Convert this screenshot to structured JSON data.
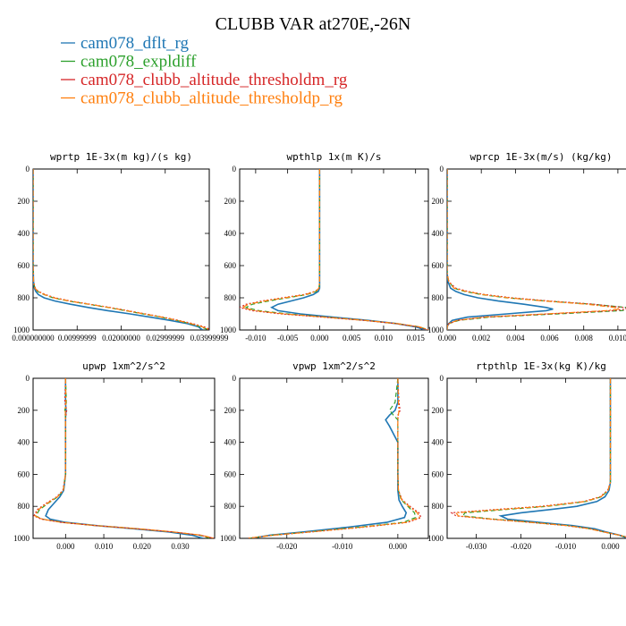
{
  "title": "CLUBB VAR at270E,-26N",
  "legend": [
    {
      "label": "cam078_dflt_rg",
      "color": "#1f77b4",
      "dash": "solid"
    },
    {
      "label": "cam078_expldiff",
      "color": "#2ca02c",
      "dash": "dash"
    },
    {
      "label": "cam078_clubb_altitude_thresholdm_rg",
      "color": "#d62728",
      "dash": "dot"
    },
    {
      "label": "cam078_clubb_altitude_thresholdp_rg",
      "color": "#ff7f0e",
      "dash": "dashdot"
    }
  ],
  "chart_data": [
    {
      "type": "line",
      "title": "wprtp  1E-3x(m kg)/(s kg)",
      "xlim": [
        0,
        0.04
      ],
      "ylim": [
        1000,
        0
      ],
      "xticks": [
        0,
        0.01,
        0.02,
        0.03,
        0.04
      ],
      "xticklabels": [
        "0.000000000",
        "0.00999999",
        "0.02000000",
        "0.02999999",
        "0.03999999"
      ],
      "yticks": [
        0,
        200,
        400,
        600,
        800,
        1000
      ],
      "yticklabels": [
        "0",
        "200",
        "400",
        "600",
        "800",
        "1000"
      ],
      "y": [
        0,
        600,
        700,
        740,
        760,
        780,
        800,
        820,
        840,
        860,
        880,
        900,
        920,
        940,
        960,
        980,
        1000
      ],
      "series": [
        {
          "name": "cam078_dflt_rg",
          "x": [
            0,
            0,
            0.0001,
            0.0003,
            0.0006,
            0.0012,
            0.0025,
            0.005,
            0.0085,
            0.0125,
            0.017,
            0.022,
            0.0265,
            0.031,
            0.035,
            0.0375,
            0.0385
          ]
        },
        {
          "name": "cam078_expldiff",
          "x": [
            0,
            0,
            0.0001,
            0.0004,
            0.001,
            0.0025,
            0.0045,
            0.008,
            0.0125,
            0.017,
            0.021,
            0.025,
            0.029,
            0.0325,
            0.0355,
            0.038,
            0.04
          ]
        },
        {
          "name": "cam078_clubb_altitude_thresholdm_rg",
          "x": [
            0,
            0,
            0.0001,
            0.0005,
            0.0012,
            0.0028,
            0.005,
            0.0085,
            0.013,
            0.0175,
            0.0215,
            0.0255,
            0.0295,
            0.033,
            0.0362,
            0.0388,
            0.0405
          ]
        },
        {
          "name": "cam078_clubb_altitude_thresholdp_rg",
          "x": [
            0,
            0,
            0.0001,
            0.0004,
            0.0011,
            0.0026,
            0.0047,
            0.0082,
            0.0127,
            0.0172,
            0.0212,
            0.0252,
            0.0292,
            0.0327,
            0.0358,
            0.0384,
            0.0402
          ]
        }
      ]
    },
    {
      "type": "line",
      "title": "wpthlp  1x(m K)/s",
      "xlim": [
        -0.0125,
        0.017
      ],
      "ylim": [
        1000,
        0
      ],
      "xticks": [
        -0.01,
        -0.005,
        0,
        0.005,
        0.01,
        0.015
      ],
      "xticklabels": [
        "-0.010",
        "-0.005",
        "0.000",
        "0.005",
        "0.010",
        "0.015"
      ],
      "yticks": [
        0,
        200,
        400,
        600,
        800,
        1000
      ],
      "yticklabels": [
        "0",
        "200",
        "400",
        "600",
        "800",
        "1000"
      ],
      "y": [
        0,
        700,
        740,
        760,
        780,
        800,
        820,
        840,
        860,
        880,
        900,
        920,
        940,
        960,
        980,
        1000
      ],
      "series": [
        {
          "name": "cam078_dflt_rg",
          "x": [
            0,
            0,
            0,
            -0.0002,
            -0.001,
            -0.0025,
            -0.0045,
            -0.0065,
            -0.0075,
            -0.0065,
            -0.003,
            0.002,
            0.0075,
            0.012,
            0.015,
            0.0165
          ]
        },
        {
          "name": "cam078_expldiff",
          "x": [
            0,
            0,
            -0.0001,
            -0.0005,
            -0.002,
            -0.005,
            -0.008,
            -0.0105,
            -0.0115,
            -0.0095,
            -0.005,
            0.001,
            0.007,
            0.012,
            0.0155,
            0.017
          ]
        },
        {
          "name": "cam078_clubb_altitude_thresholdm_rg",
          "x": [
            0,
            0,
            -0.0001,
            -0.0007,
            -0.0025,
            -0.0058,
            -0.009,
            -0.0115,
            -0.0125,
            -0.0105,
            -0.006,
            0.0005,
            0.0068,
            0.0118,
            0.0153,
            0.0168
          ]
        },
        {
          "name": "cam078_clubb_altitude_thresholdp_rg",
          "x": [
            0,
            0,
            -0.0001,
            -0.0006,
            -0.0022,
            -0.0054,
            -0.0086,
            -0.0111,
            -0.0121,
            -0.0101,
            -0.0056,
            0.0008,
            0.0071,
            0.0121,
            0.0156,
            0.0171
          ]
        }
      ]
    },
    {
      "type": "line",
      "title": "wprcp  1E-3x(m/s) (kg/kg)",
      "xlim": [
        0,
        0.011
      ],
      "ylim": [
        1000,
        0
      ],
      "xticks": [
        0,
        0.002,
        0.004,
        0.006,
        0.008,
        0.01
      ],
      "xticklabels": [
        "0.000",
        "0.002",
        "0.004",
        "0.006",
        "0.008",
        "0.010"
      ],
      "yticks": [
        0,
        200,
        400,
        600,
        800,
        1000
      ],
      "yticklabels": [
        "0",
        "200",
        "400",
        "600",
        "800",
        "1000"
      ],
      "y": [
        0,
        650,
        700,
        740,
        760,
        780,
        800,
        820,
        840,
        860,
        870,
        880,
        900,
        920,
        940,
        960,
        980,
        1000
      ],
      "series": [
        {
          "name": "cam078_dflt_rg",
          "x": [
            0,
            0,
            5e-05,
            0.0002,
            0.0005,
            0.001,
            0.0018,
            0.003,
            0.0045,
            0.0058,
            0.0062,
            0.0058,
            0.0035,
            0.0012,
            0.0003,
            0.0001,
            0,
            0
          ]
        },
        {
          "name": "cam078_expldiff",
          "x": [
            0,
            0,
            0.0001,
            0.0004,
            0.001,
            0.002,
            0.0035,
            0.0058,
            0.0085,
            0.0105,
            0.011,
            0.0102,
            0.0065,
            0.0025,
            0.0007,
            0.0001,
            0,
            0
          ]
        },
        {
          "name": "cam078_clubb_altitude_thresholdm_rg",
          "x": [
            0,
            0,
            0.0001,
            0.0005,
            0.0012,
            0.0022,
            0.0038,
            0.006,
            0.0086,
            0.0103,
            0.0106,
            0.0097,
            0.006,
            0.0022,
            0.0006,
            0.0001,
            0,
            0
          ]
        },
        {
          "name": "cam078_clubb_altitude_thresholdp_rg",
          "x": [
            0,
            0,
            0.0001,
            0.0004,
            0.0011,
            0.0021,
            0.0036,
            0.0057,
            0.0082,
            0.0098,
            0.0101,
            0.0093,
            0.0058,
            0.0021,
            0.0006,
            0.0001,
            0,
            0
          ]
        }
      ]
    },
    {
      "type": "line",
      "title": "upwp  1xm^2/s^2",
      "xlim": [
        -0.0085,
        0.039
      ],
      "ylim": [
        1000,
        0
      ],
      "xticks": [
        0,
        0.01,
        0.02,
        0.03
      ],
      "xticklabels": [
        "0.000",
        "0.010",
        "0.020",
        "0.030"
      ],
      "yticks": [
        0,
        200,
        400,
        600,
        800,
        1000
      ],
      "yticklabels": [
        "0",
        "200",
        "400",
        "600",
        "800",
        "1000"
      ],
      "y": [
        0,
        150,
        200,
        250,
        600,
        700,
        740,
        780,
        820,
        860,
        880,
        900,
        920,
        940,
        960,
        980,
        1000
      ],
      "series": [
        {
          "name": "cam078_dflt_rg",
          "x": [
            0,
            0,
            0.0001,
            0,
            0,
            -0.0005,
            -0.0015,
            -0.003,
            -0.0045,
            -0.0052,
            -0.004,
            0,
            0.008,
            0.018,
            0.027,
            0.033,
            0.036
          ]
        },
        {
          "name": "cam078_expldiff",
          "x": [
            0,
            0.0002,
            -0.0002,
            0,
            0,
            -0.0006,
            -0.002,
            -0.0045,
            -0.0068,
            -0.0078,
            -0.006,
            -0.001,
            0.008,
            0.019,
            0.028,
            0.035,
            0.038
          ]
        },
        {
          "name": "cam078_clubb_altitude_thresholdm_rg",
          "x": [
            0,
            -0.0002,
            0.0003,
            0,
            0,
            -0.0007,
            -0.0023,
            -0.005,
            -0.0074,
            -0.0083,
            -0.0063,
            -0.0012,
            0.0078,
            0.0188,
            0.028,
            0.0352,
            0.0388
          ]
        },
        {
          "name": "cam078_clubb_altitude_thresholdp_rg",
          "x": [
            0,
            0.0001,
            -0.0001,
            0,
            0,
            -0.0006,
            -0.0021,
            -0.0047,
            -0.0071,
            -0.008,
            -0.0061,
            -0.0011,
            0.0079,
            0.019,
            0.0282,
            0.0354,
            0.039
          ]
        }
      ]
    },
    {
      "type": "line",
      "title": "vpwp  1xm^2/s^2",
      "xlim": [
        -0.0285,
        0.0055
      ],
      "ylim": [
        1000,
        0
      ],
      "xticks": [
        -0.02,
        -0.01,
        0
      ],
      "xticklabels": [
        "-0.020",
        "-0.010",
        "0.000"
      ],
      "yticks": [
        0,
        200,
        400,
        600,
        800,
        1000
      ],
      "yticklabels": [
        "0",
        "200",
        "400",
        "600",
        "800",
        "1000"
      ],
      "y": [
        0,
        150,
        200,
        230,
        260,
        300,
        400,
        600,
        700,
        760,
        800,
        840,
        870,
        900,
        930,
        960,
        980,
        1000
      ],
      "series": [
        {
          "name": "cam078_dflt_rg",
          "x": [
            0,
            0,
            -0.0005,
            -0.0015,
            -0.0022,
            -0.0015,
            0,
            0,
            0,
            0.0002,
            0.0008,
            0.0015,
            0.0012,
            -0.002,
            -0.009,
            -0.017,
            -0.023,
            -0.0265
          ]
        },
        {
          "name": "cam078_expldiff",
          "x": [
            0,
            -0.0005,
            -0.0015,
            -0.0008,
            0,
            0,
            0,
            0,
            0.0001,
            0.0006,
            0.0018,
            0.003,
            0.0032,
            0.001,
            -0.007,
            -0.016,
            -0.0225,
            -0.027
          ]
        },
        {
          "name": "cam078_clubb_altitude_thresholdm_rg",
          "x": [
            0,
            0.0002,
            0.0004,
            0,
            0,
            0,
            0,
            0,
            0.0001,
            0.0008,
            0.0022,
            0.0038,
            0.0042,
            0.0018,
            -0.0062,
            -0.0155,
            -0.0222,
            -0.0272
          ]
        },
        {
          "name": "cam078_clubb_altitude_thresholdp_rg",
          "x": [
            0,
            0.0001,
            0.0002,
            0.0001,
            0,
            0,
            0,
            0,
            0.0001,
            0.0007,
            0.002,
            0.0035,
            0.0039,
            0.0015,
            -0.0065,
            -0.0158,
            -0.0224,
            -0.0271
          ]
        }
      ]
    },
    {
      "type": "line",
      "title": "rtpthlp  1E-3x(kg K)/kg",
      "xlim": [
        -0.0365,
        0.0055
      ],
      "ylim": [
        1000,
        0
      ],
      "xticks": [
        -0.03,
        -0.02,
        -0.01,
        0
      ],
      "xticklabels": [
        "-0.030",
        "-0.020",
        "-0.010",
        "0.000"
      ],
      "yticks": [
        0,
        200,
        400,
        600,
        800,
        1000
      ],
      "yticklabels": [
        "0",
        "200",
        "400",
        "600",
        "800",
        "1000"
      ],
      "y": [
        0,
        650,
        700,
        740,
        770,
        800,
        820,
        840,
        860,
        880,
        900,
        920,
        940,
        960,
        980,
        1000
      ],
      "series": [
        {
          "name": "cam078_dflt_rg",
          "x": [
            0,
            0,
            -0.0003,
            -0.0012,
            -0.003,
            -0.0075,
            -0.0135,
            -0.02,
            -0.0245,
            -0.023,
            -0.016,
            -0.0085,
            -0.0035,
            -0.001,
            0.002,
            0.004
          ]
        },
        {
          "name": "cam078_expldiff",
          "x": [
            0,
            0,
            -0.0005,
            -0.002,
            -0.0055,
            -0.014,
            -0.0235,
            -0.0325,
            -0.033,
            -0.026,
            -0.0175,
            -0.0095,
            -0.0045,
            -0.0015,
            0.002,
            0.0045
          ]
        },
        {
          "name": "cam078_clubb_altitude_thresholdm_rg",
          "x": [
            0,
            0,
            -0.0006,
            -0.0023,
            -0.006,
            -0.0155,
            -0.0258,
            -0.0355,
            -0.0345,
            -0.027,
            -0.018,
            -0.0098,
            -0.0046,
            -0.0015,
            0.002,
            0.0048
          ]
        },
        {
          "name": "cam078_clubb_altitude_thresholdp_rg",
          "x": [
            0,
            0,
            -0.0005,
            -0.0021,
            -0.0057,
            -0.0148,
            -0.0248,
            -0.0345,
            -0.034,
            -0.0266,
            -0.0178,
            -0.0097,
            -0.0046,
            -0.0015,
            0.002,
            0.0047
          ]
        }
      ]
    }
  ]
}
